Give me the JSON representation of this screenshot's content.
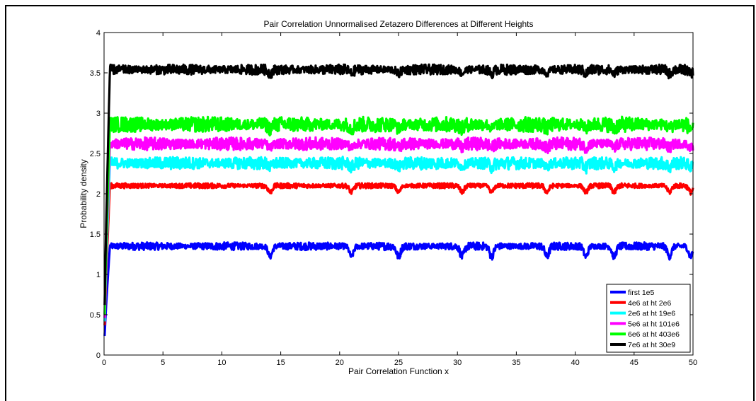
{
  "chart_data": {
    "type": "line",
    "title": "Pair Correlation Unnormalised Zetazero Differences at Different Heights",
    "xlabel": "Pair Correlation Function x",
    "ylabel": "Probability density",
    "xlim": [
      0,
      50
    ],
    "ylim": [
      0,
      4
    ],
    "xticks": [
      0,
      5,
      10,
      15,
      20,
      25,
      30,
      35,
      40,
      45,
      50
    ],
    "yticks": [
      0,
      0.5,
      1,
      1.5,
      2,
      2.5,
      3,
      3.5,
      4
    ],
    "xtick_labels": [
      "0",
      "5",
      "10",
      "15",
      "20",
      "25",
      "30",
      "35",
      "40",
      "45",
      "50"
    ],
    "ytick_labels": [
      "0",
      "0.5",
      "1",
      "1.5",
      "2",
      "2.5",
      "3",
      "3.5",
      "4"
    ],
    "grid": false,
    "legend_position": "bottom-right",
    "dip_x": [
      14.1,
      21.0,
      25.0,
      30.4,
      32.9,
      37.6,
      40.9,
      43.3,
      48.0,
      49.8
    ],
    "series": [
      {
        "name": "first 1e5",
        "color": "#0000ff",
        "level": 1.35,
        "noise": 0.03,
        "dip": 0.13
      },
      {
        "name": "4e6 at ht 2e6",
        "color": "#ff0000",
        "level": 2.1,
        "noise": 0.02,
        "dip": 0.08
      },
      {
        "name": "2e6 at ht 19e6",
        "color": "#00ffff",
        "level": 2.38,
        "noise": 0.05,
        "dip": 0.05
      },
      {
        "name": "5e6 at ht 101e6",
        "color": "#ff00ff",
        "level": 2.62,
        "noise": 0.05,
        "dip": 0.05
      },
      {
        "name": "6e6 at ht 403e6",
        "color": "#00ff00",
        "level": 2.86,
        "noise": 0.06,
        "dip": 0.05
      },
      {
        "name": "7e6 at ht 30e9",
        "color": "#000000",
        "level": 3.54,
        "noise": 0.04,
        "dip": 0.05
      }
    ]
  }
}
